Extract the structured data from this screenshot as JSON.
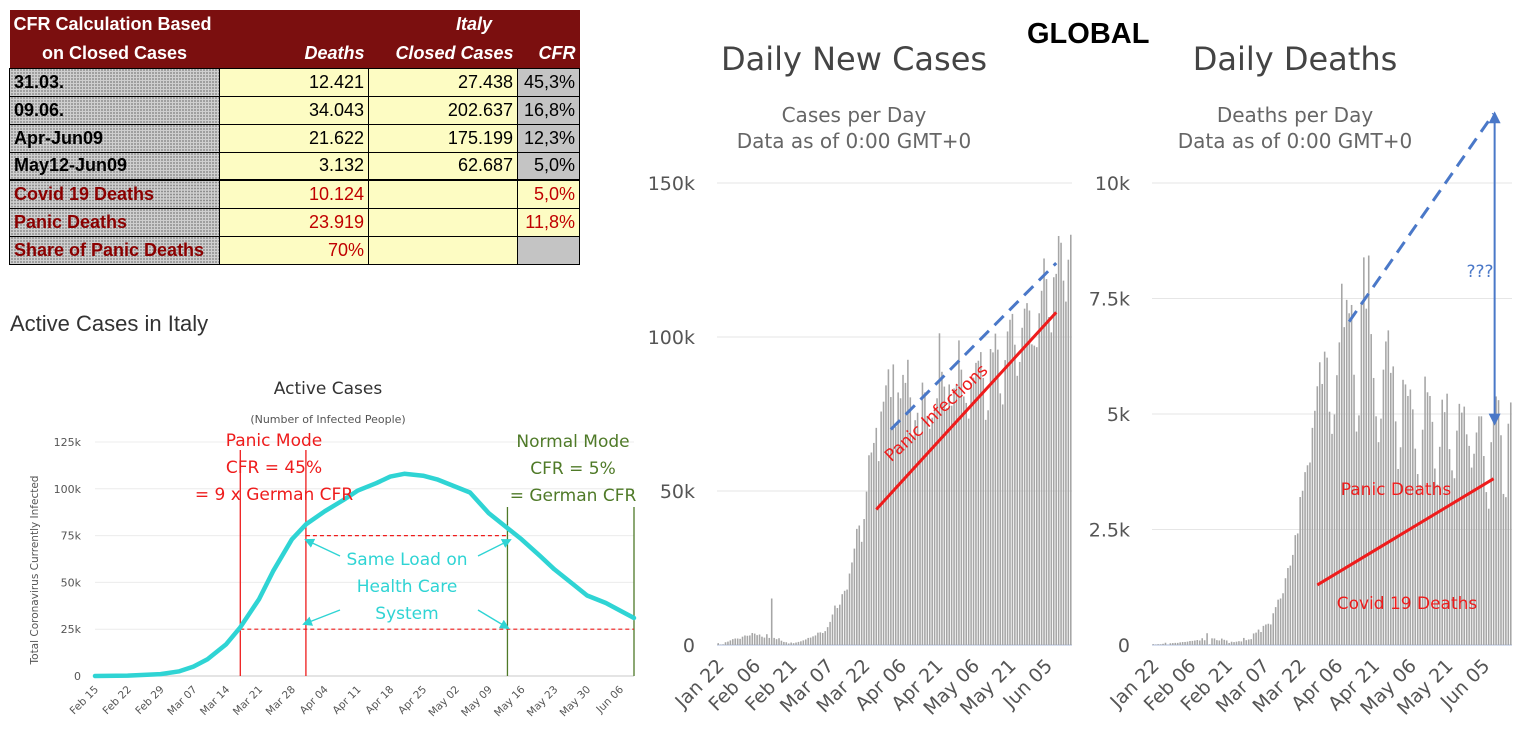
{
  "global_label": "GLOBAL",
  "table": {
    "title_line1": "CFR Calculation Based",
    "title_line2": "on Closed Cases",
    "country": "Italy",
    "col_deaths": "Deaths",
    "col_closed": "Closed Cases",
    "col_cfr": "CFR",
    "rows": [
      {
        "label": "31.03.",
        "deaths": "12.421",
        "closed": "27.438",
        "cfr": "45,3%"
      },
      {
        "label": "09.06.",
        "deaths": "34.043",
        "closed": "202.637",
        "cfr": "16,8%"
      },
      {
        "label": "Apr-Jun09",
        "deaths": "21.622",
        "closed": "175.199",
        "cfr": "12,3%"
      },
      {
        "label": "May12-Jun09",
        "deaths": "3.132",
        "closed": "62.687",
        "cfr": "5,0%"
      },
      {
        "label": "Covid 19 Deaths",
        "deaths": "10.124",
        "closed": "",
        "cfr": "5,0%"
      },
      {
        "label": "Panic Deaths",
        "deaths": "23.919",
        "closed": "",
        "cfr": "11,8%"
      },
      {
        "label": "Share of Panic Deaths",
        "deaths": "70%",
        "closed": "",
        "cfr": ""
      }
    ]
  },
  "active_heading": "Active Cases in Italy",
  "colors": {
    "dark_red": "#7b0f0f",
    "cyan": "#2fd4d4",
    "red": "#ee1c1c",
    "green": "#4f7a28",
    "blue": "#4a78c8",
    "bar": "#a6a6a6"
  },
  "chart_data": [
    {
      "type": "line",
      "title": "Active Cases",
      "subtitle": "(Number of Infected People)",
      "ylabel": "Total Coronavirus Currently Infected",
      "xlabel": "",
      "x_ticks": [
        "Feb 15",
        "Feb 22",
        "Feb 29",
        "Mar 07",
        "Mar 14",
        "Mar 21",
        "Mar 28",
        "Apr 04",
        "Apr 11",
        "Apr 18",
        "Apr 25",
        "May 02",
        "May 09",
        "May 16",
        "May 23",
        "May 30",
        "Jun 06"
      ],
      "y_ticks": [
        "0",
        "25k",
        "50k",
        "75k",
        "100k",
        "125k"
      ],
      "ylim": [
        0,
        125000
      ],
      "grid": true,
      "x": [
        "Feb 15",
        "Feb 22",
        "Feb 29",
        "Mar 04",
        "Mar 07",
        "Mar 10",
        "Mar 14",
        "Mar 17",
        "Mar 21",
        "Mar 24",
        "Mar 28",
        "Mar 31",
        "Apr 04",
        "Apr 08",
        "Apr 11",
        "Apr 15",
        "Apr 18",
        "Apr 21",
        "Apr 25",
        "Apr 28",
        "May 02",
        "May 05",
        "May 09",
        "May 12",
        "May 16",
        "May 20",
        "May 23",
        "May 27",
        "May 30",
        "Jun 03",
        "Jun 06",
        "Jun 09"
      ],
      "values": [
        0,
        200,
        1000,
        2500,
        5000,
        9000,
        17000,
        26000,
        41000,
        56000,
        73000,
        81000,
        88000,
        94000,
        99000,
        103000,
        106500,
        108000,
        107000,
        105000,
        101000,
        98000,
        87000,
        81000,
        73000,
        64000,
        57000,
        49000,
        43000,
        39000,
        35000,
        31000
      ],
      "annotations": {
        "panic_mode": [
          "Panic Mode",
          "CFR = 45%",
          "= 9 x German CFR"
        ],
        "normal_mode": [
          "Normal Mode",
          "CFR = 5%",
          "= German CFR"
        ],
        "same_load": [
          "Same Load on",
          "Health Care",
          "System"
        ]
      },
      "markers": {
        "panic_lines": [
          "Mar 17",
          "Mar 31"
        ],
        "normal_lines": [
          "May 13",
          "Jun 09"
        ],
        "dashed_levels": [
          75000,
          25000
        ]
      }
    },
    {
      "type": "bar",
      "title": "Daily New Cases",
      "subtitle": "Cases per Day",
      "subtitle2": "Data as of 0:00 GMT+0",
      "y_ticks": [
        "0",
        "50k",
        "100k",
        "150k"
      ],
      "x_ticks": [
        "Jan 22",
        "Feb 06",
        "Feb 21",
        "Mar 07",
        "Mar 22",
        "Apr 06",
        "Apr 21",
        "May 06",
        "May 21",
        "Jun 05"
      ],
      "ylim": [
        0,
        150000
      ],
      "start_date": "Jan 22",
      "values": [
        600,
        100,
        200,
        900,
        1100,
        1500,
        1900,
        2100,
        2100,
        2000,
        2700,
        3100,
        3000,
        3100,
        3900,
        3700,
        3200,
        3400,
        2700,
        2400,
        3500,
        2300,
        15100,
        2300,
        1900,
        2200,
        1400,
        1000,
        900,
        500,
        800,
        600,
        800,
        1000,
        1200,
        1500,
        1800,
        2300,
        2400,
        2800,
        3100,
        4000,
        4100,
        3900,
        4500,
        5800,
        7500,
        9900,
        12800,
        12000,
        13100,
        16500,
        17600,
        18000,
        23200,
        26800,
        31300,
        37700,
        38800,
        33500,
        40900,
        49800,
        61600,
        62500,
        65600,
        70500,
        59700,
        75800,
        79000,
        84300,
        89500,
        80500,
        91100,
        70900,
        82000,
        80100,
        87700,
        85100,
        92600,
        80400,
        68000,
        73000,
        75400,
        68100,
        85200,
        82000,
        74400,
        70200,
        73800,
        77000,
        80100,
        101200,
        88700,
        83900,
        76900,
        84600,
        77700,
        83300,
        84500,
        98900,
        89400,
        80700,
        78600,
        73500,
        85100,
        86800,
        91600,
        92300,
        95100,
        86700,
        73100,
        76200,
        96100,
        95000,
        101100,
        95900,
        81700,
        78100,
        92500,
        101800,
        105600,
        107500,
        97500,
        87400,
        91900,
        103000,
        109200,
        111000,
        108600,
        97600,
        97200,
        96700,
        107700,
        115000,
        125500,
        118800,
        106500,
        101500,
        119400,
        120500,
        132800,
        130600,
        118300,
        111500,
        125100,
        133200
      ],
      "annotations": {
        "trend_label": "Panic Infections"
      },
      "trend_lines": {
        "solid": {
          "from": [
            "Mar 27",
            44000
          ],
          "to": [
            "Jun 09",
            108000
          ]
        },
        "dashed": {
          "from": [
            "Apr 02",
            70000
          ],
          "to": [
            "Jun 09",
            124000
          ]
        }
      }
    },
    {
      "type": "bar",
      "title": "Daily Deaths",
      "subtitle": "Deaths per Day",
      "subtitle2": "Data as of 0:00 GMT+0",
      "y_ticks": [
        "0",
        "2.5k",
        "5k",
        "7.5k",
        "10k"
      ],
      "x_ticks": [
        "Jan 22",
        "Feb 06",
        "Feb 21",
        "Mar 07",
        "Mar 22",
        "Apr 06",
        "Apr 21",
        "May 06",
        "May 21",
        "Jun 05"
      ],
      "ylim": [
        0,
        10000
      ],
      "start_date": "Jan 22",
      "values": [
        17,
        8,
        16,
        14,
        26,
        49,
        2,
        38,
        42,
        46,
        46,
        57,
        64,
        66,
        73,
        86,
        89,
        97,
        108,
        97,
        146,
        103,
        255,
        13,
        144,
        142,
        105,
        98,
        139,
        112,
        98,
        44,
        71,
        63,
        72,
        83,
        77,
        153,
        105,
        120,
        127,
        250,
        268,
        334,
        281,
        414,
        444,
        460,
        445,
        687,
        820,
        981,
        1007,
        1120,
        1445,
        1666,
        1719,
        1950,
        2378,
        2415,
        3203,
        3339,
        3742,
        3890,
        3950,
        4700,
        5070,
        5600,
        6120,
        5650,
        6350,
        6220,
        5050,
        4570,
        4990,
        5840,
        6550,
        7820,
        6880,
        7470,
        7180,
        7360,
        5850,
        4620,
        4970,
        7430,
        8390,
        7280,
        8430,
        6730,
        5780,
        4950,
        4390,
        4900,
        5960,
        6570,
        6810,
        5890,
        6030,
        4840,
        3810,
        4280,
        5740,
        5640,
        5390,
        5530,
        5100,
        4250,
        3700,
        3460,
        4660,
        5810,
        5470,
        5390,
        4830,
        3820,
        3470,
        4290,
        5310,
        5040,
        5440,
        4240,
        3780,
        3610,
        4640,
        5220,
        5030,
        5160,
        4560,
        4310,
        3840,
        4140,
        4600,
        4950,
        4950,
        4090,
        3310,
        2950,
        4390,
        4860,
        5380,
        5300,
        4540,
        3270,
        3200,
        4790,
        5250
      ],
      "annotations": {
        "panic_label": "Panic Deaths",
        "covid_label": "Covid 19 Deaths",
        "question": "???"
      },
      "trend_lines": {
        "solid": {
          "from": [
            "Mar 29",
            1300
          ],
          "to": [
            "Jun 09",
            3600
          ]
        },
        "dashed": {
          "from": [
            "Apr 11",
            7000
          ],
          "to": [
            "Jun 09",
            11500
          ]
        }
      }
    }
  ]
}
